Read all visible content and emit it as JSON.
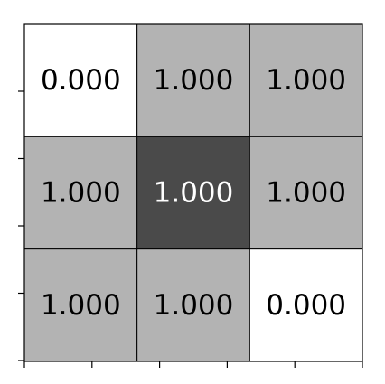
{
  "chart_data": {
    "type": "heatmap",
    "title": "",
    "xlabel": "",
    "ylabel": "",
    "rows": 3,
    "cols": 3,
    "values": [
      [
        "0.000",
        "1.000",
        "1.000"
      ],
      [
        "1.000",
        "1.000",
        "1.000"
      ],
      [
        "1.000",
        "1.000",
        "0.000"
      ]
    ],
    "cell_colors": [
      [
        "#ffffff",
        "#b3b3b3",
        "#b3b3b3"
      ],
      [
        "#b3b3b3",
        "#4a4a4a",
        "#b3b3b3"
      ],
      [
        "#b3b3b3",
        "#b3b3b3",
        "#ffffff"
      ]
    ],
    "text_colors": [
      [
        "#000000",
        "#000000",
        "#000000"
      ],
      [
        "#000000",
        "#ffffff",
        "#000000"
      ],
      [
        "#000000",
        "#000000",
        "#000000"
      ]
    ],
    "x_tick_count": 6,
    "y_tick_count": 6,
    "tick_labels_shown": false,
    "grid": true
  }
}
